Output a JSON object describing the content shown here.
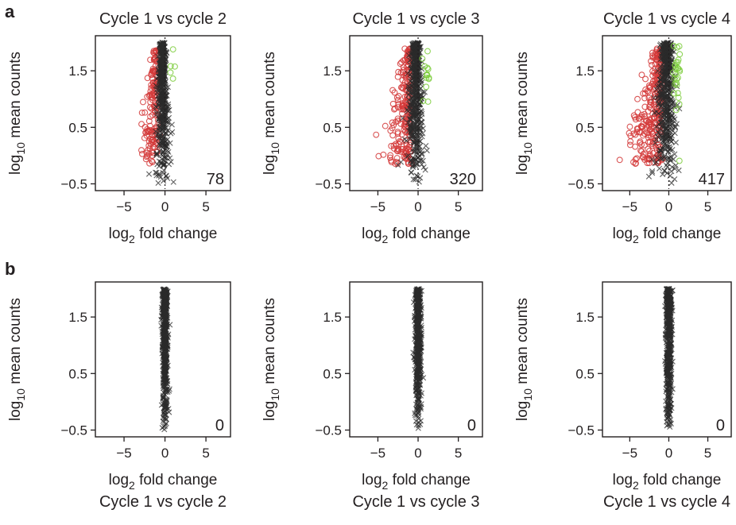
{
  "figure": {
    "panel_labels": [
      "a",
      "b"
    ]
  },
  "colors": {
    "down": "#d43a3a",
    "up": "#7ccc3c",
    "nonsig": "#2b2b2b",
    "axis": "#231f20"
  },
  "chart_data": [
    {
      "panel": "a",
      "type": "scatter",
      "title": "Cycle 1 vs cycle 2",
      "xlabel_base": "log",
      "xlabel_sub": "2",
      "xlabel_rest": " fold change",
      "ylabel_base": "log",
      "ylabel_sub": "10",
      "ylabel_rest": " mean counts",
      "xticks": [
        "-5",
        "0",
        "5"
      ],
      "yticks": [
        "-0.5",
        "0.5",
        "1.5"
      ],
      "xlim": [
        -8.5,
        8
      ],
      "ylim": [
        -0.62,
        2.12
      ],
      "significant_count": "78",
      "down_width": 2.2,
      "up_count": 5,
      "spread": 0.55
    },
    {
      "panel": "a",
      "type": "scatter",
      "title": "Cycle 1 vs cycle 3",
      "xlabel_base": "log",
      "xlabel_sub": "2",
      "xlabel_rest": " fold change",
      "ylabel_base": "log",
      "ylabel_sub": "10",
      "ylabel_rest": " mean counts",
      "xticks": [
        "-5",
        "0",
        "5"
      ],
      "yticks": [
        "-0.5",
        "0.5",
        "1.5"
      ],
      "xlim": [
        -8.5,
        8
      ],
      "ylim": [
        -0.62,
        2.12
      ],
      "significant_count": "320",
      "down_width": 3.3,
      "up_count": 14,
      "spread": 0.8
    },
    {
      "panel": "a",
      "type": "scatter",
      "title": "Cycle 1 vs cycle 4",
      "xlabel_base": "log",
      "xlabel_sub": "2",
      "xlabel_rest": " fold change",
      "ylabel_base": "log",
      "ylabel_sub": "10",
      "ylabel_rest": " mean counts",
      "xticks": [
        "-5",
        "0",
        "5"
      ],
      "yticks": [
        "-0.5",
        "0.5",
        "1.5"
      ],
      "xlim": [
        -8.5,
        8
      ],
      "ylim": [
        -0.62,
        2.12
      ],
      "significant_count": "417",
      "down_width": 4.4,
      "up_count": 28,
      "spread": 1.0
    },
    {
      "panel": "b",
      "type": "scatter",
      "title": "Cycle 1 vs cycle 2",
      "xlabel_base": "log",
      "xlabel_sub": "2",
      "xlabel_rest": " fold change",
      "ylabel_base": "log",
      "ylabel_sub": "10",
      "ylabel_rest": " mean counts",
      "xticks": [
        "-5",
        "0",
        "5"
      ],
      "yticks": [
        "-0.5",
        "0.5",
        "1.5"
      ],
      "xlim": [
        -8.5,
        8
      ],
      "ylim": [
        -0.62,
        2.12
      ],
      "significant_count": "0",
      "down_width": 0,
      "up_count": 0,
      "spread": 0.28
    },
    {
      "panel": "b",
      "type": "scatter",
      "title": "Cycle 1 vs cycle 3",
      "xlabel_base": "log",
      "xlabel_sub": "2",
      "xlabel_rest": " fold change",
      "ylabel_base": "log",
      "ylabel_sub": "10",
      "ylabel_rest": " mean counts",
      "xticks": [
        "-5",
        "0",
        "5"
      ],
      "yticks": [
        "-0.5",
        "0.5",
        "1.5"
      ],
      "xlim": [
        -8.5,
        8
      ],
      "ylim": [
        -0.62,
        2.12
      ],
      "significant_count": "0",
      "down_width": 0,
      "up_count": 0,
      "spread": 0.3
    },
    {
      "panel": "b",
      "type": "scatter",
      "title": "Cycle 1 vs cycle 4",
      "xlabel_base": "log",
      "xlabel_sub": "2",
      "xlabel_rest": " fold change",
      "ylabel_base": "log",
      "ylabel_sub": "10",
      "ylabel_rest": " mean counts",
      "xticks": [
        "-5",
        "0",
        "5"
      ],
      "yticks": [
        "-0.5",
        "0.5",
        "1.5"
      ],
      "xlim": [
        -8.5,
        8
      ],
      "ylim": [
        -0.62,
        2.12
      ],
      "significant_count": "0",
      "down_width": 0,
      "up_count": 0,
      "spread": 0.3
    }
  ]
}
